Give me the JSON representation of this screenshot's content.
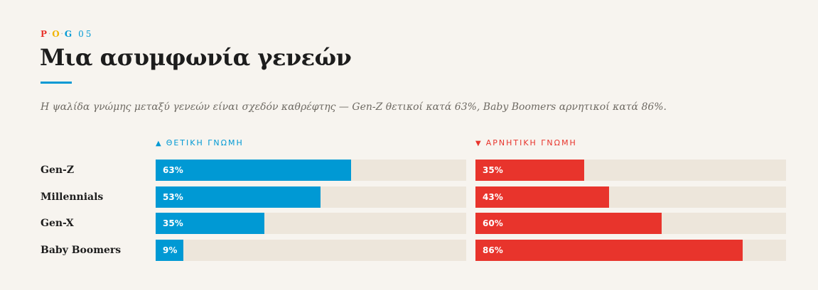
{
  "kicker": {
    "letters": [
      "P",
      "O",
      "G"
    ],
    "number": "05"
  },
  "colors": {
    "positive": "#0099d4",
    "negative": "#e8342c",
    "track": "#ede6db"
  },
  "chart_data": {
    "type": "bar",
    "title": "Μια ασυμφωνία γενεών",
    "subtitle": "Η ψαλίδα γνώμης μεταξύ γενεών είναι σχεδόν καθρέφτης — Gen-Z θετικοί κατά 63%, Baby Boomers αρνητικοί κατά 86%.",
    "categories": [
      "Gen-Z",
      "Millennials",
      "Gen-X",
      "Baby Boomers"
    ],
    "unit": "%",
    "xlim": [
      0,
      100
    ],
    "series": [
      {
        "name": "ΘΕΤΙΚΗ ΓΝΩΜΗ",
        "marker": "▲",
        "values": [
          63,
          53,
          35,
          9
        ],
        "labels": [
          "63%",
          "53%",
          "35%",
          "9%"
        ]
      },
      {
        "name": "ΑΡΝΗΤΙΚΗ ΓΝΩΜΗ",
        "marker": "▼",
        "values": [
          35,
          43,
          60,
          86
        ],
        "labels": [
          "35%",
          "43%",
          "60%",
          "86%"
        ]
      }
    ]
  }
}
